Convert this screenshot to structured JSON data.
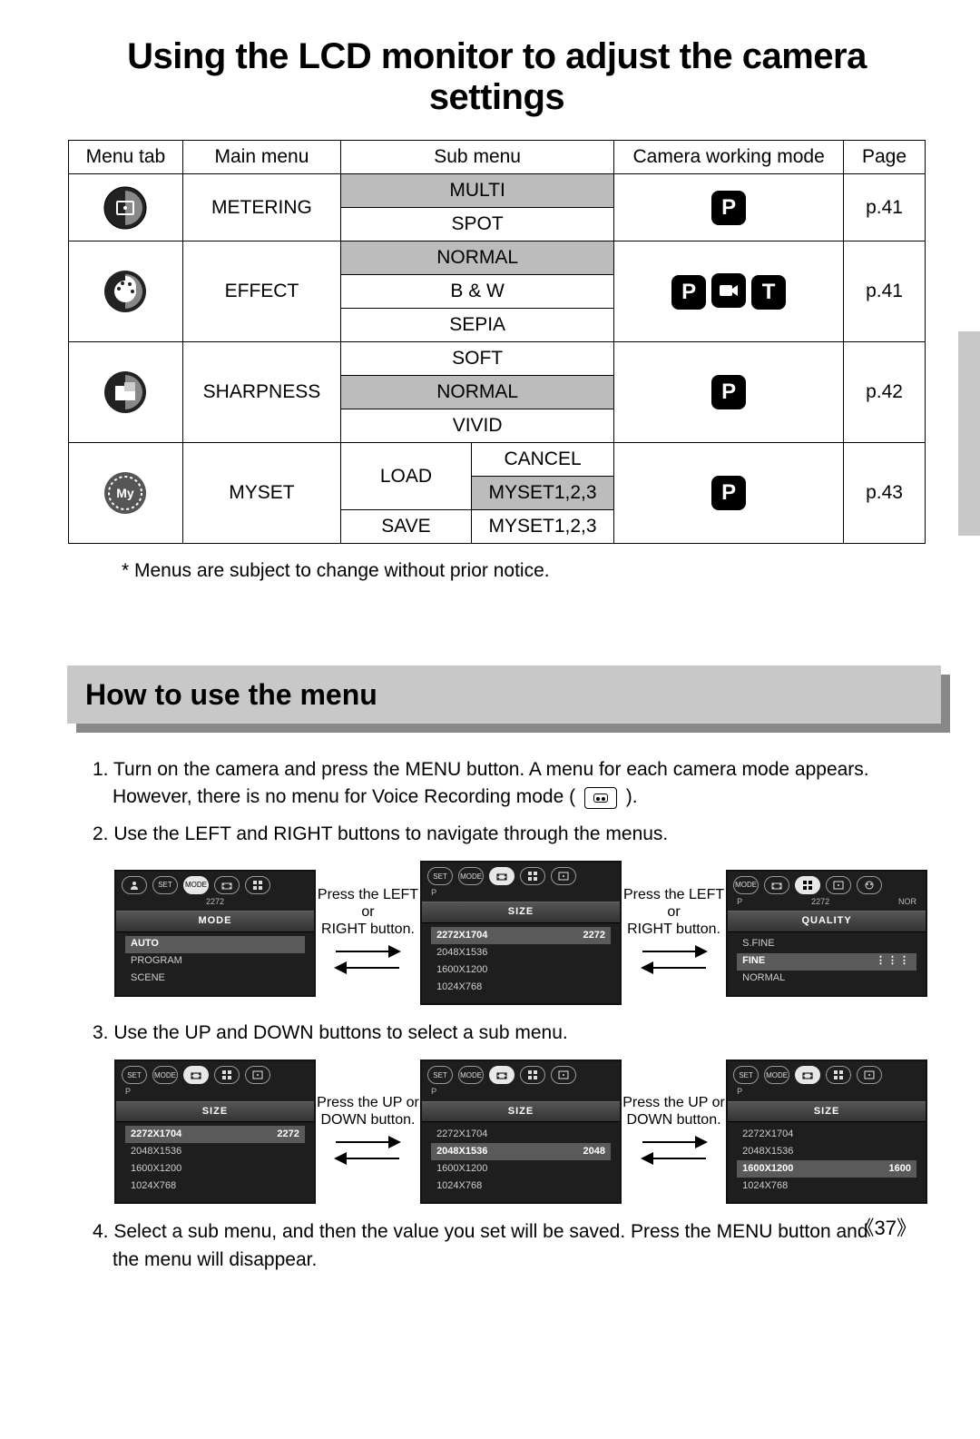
{
  "title": "Using the LCD monitor to adjust the camera settings",
  "table": {
    "headers": {
      "menutab": "Menu tab",
      "mainmenu": "Main menu",
      "submenu": "Sub menu",
      "mode": "Camera working mode",
      "page": "Page"
    },
    "rows": [
      {
        "icon": "metering",
        "main": "METERING",
        "subs": [
          {
            "text": "MULTI",
            "shaded": true
          },
          {
            "text": "SPOT"
          }
        ],
        "modes": [
          "P"
        ],
        "page": "p.41"
      },
      {
        "icon": "effect",
        "main": "EFFECT",
        "subs": [
          {
            "text": "NORMAL",
            "shaded": true
          },
          {
            "text": "B & W"
          },
          {
            "text": "SEPIA"
          }
        ],
        "modes": [
          "P",
          "movie",
          "T"
        ],
        "page": "p.41"
      },
      {
        "icon": "sharpness",
        "main": "SHARPNESS",
        "subs": [
          {
            "text": "SOFT"
          },
          {
            "text": "NORMAL",
            "shaded": true
          },
          {
            "text": "VIVID"
          }
        ],
        "modes": [
          "P"
        ],
        "page": "p.42"
      },
      {
        "icon": "myset",
        "main": "MYSET",
        "subs2": {
          "col1": [
            "LOAD",
            "SAVE"
          ],
          "col2": [
            "CANCEL",
            "MYSET1,2,3",
            "MYSET1,2,3"
          ],
          "shadedCol2": [
            false,
            true,
            false
          ]
        },
        "modes": [
          "P"
        ],
        "page": "p.43"
      }
    ]
  },
  "footnote": "* Menus are subject to change without prior notice.",
  "section": "How to use the menu",
  "steps": {
    "s1a": "1. Turn on the camera and press the MENU button. A menu for each camera mode appears.",
    "s1b": "However, there is no menu for Voice Recording mode (",
    "s1c": ").",
    "s2": "2. Use the LEFT and RIGHT buttons to navigate through the menus.",
    "s3": "3. Use the UP and DOWN buttons to select a sub menu.",
    "s4a": "4. Select a sub menu, and then the value you set will be saved. Press the MENU button and",
    "s4b": "the menu will disappear."
  },
  "arrows": {
    "lr1": "Press the LEFT or",
    "lr2": "RIGHT button.",
    "ud1": "Press the UP or",
    "ud2": "DOWN button."
  },
  "lcd": {
    "row1": [
      {
        "title": "MODE",
        "sub_left": "",
        "sub_mid": "2272",
        "sub_right": "",
        "tabs": [
          "person",
          "SET",
          "MODE",
          "size",
          "grid"
        ],
        "active": 2,
        "items": [
          {
            "label": "AUTO",
            "sel": true
          },
          {
            "label": "PROGRAM"
          },
          {
            "label": "SCENE"
          }
        ]
      },
      {
        "title": "SIZE",
        "sub_left": "P",
        "sub_mid": "",
        "sub_right": "",
        "tabs": [
          "SET",
          "MODE",
          "size",
          "grid",
          "meter"
        ],
        "active": 2,
        "items": [
          {
            "label": "2272X1704",
            "val": "2272",
            "sel": true
          },
          {
            "label": "2048X1536"
          },
          {
            "label": "1600X1200"
          },
          {
            "label": "1024X768"
          }
        ]
      },
      {
        "title": "QUALITY",
        "sub_left": "P",
        "sub_mid": "2272",
        "sub_right": "NOR",
        "tabs": [
          "MODE",
          "size",
          "grid",
          "meter",
          "effect"
        ],
        "active": 2,
        "items": [
          {
            "label": "S.FINE"
          },
          {
            "label": "FINE",
            "dots": true,
            "sel": true
          },
          {
            "label": "NORMAL"
          }
        ]
      }
    ],
    "row2": [
      {
        "title": "SIZE",
        "sub_left": "P",
        "sub_mid": "",
        "sub_right": "",
        "tabs": [
          "SET",
          "MODE",
          "size",
          "grid",
          "meter"
        ],
        "active": 2,
        "items": [
          {
            "label": "2272X1704",
            "val": "2272",
            "sel": true
          },
          {
            "label": "2048X1536"
          },
          {
            "label": "1600X1200"
          },
          {
            "label": "1024X768"
          }
        ]
      },
      {
        "title": "SIZE",
        "sub_left": "P",
        "sub_mid": "",
        "sub_right": "",
        "tabs": [
          "SET",
          "MODE",
          "size",
          "grid",
          "meter"
        ],
        "active": 2,
        "items": [
          {
            "label": "2272X1704"
          },
          {
            "label": "2048X1536",
            "val": "2048",
            "sel": true
          },
          {
            "label": "1600X1200"
          },
          {
            "label": "1024X768"
          }
        ]
      },
      {
        "title": "SIZE",
        "sub_left": "P",
        "sub_mid": "",
        "sub_right": "",
        "tabs": [
          "SET",
          "MODE",
          "size",
          "grid",
          "meter"
        ],
        "active": 2,
        "items": [
          {
            "label": "2272X1704"
          },
          {
            "label": "2048X1536"
          },
          {
            "label": "1600X1200",
            "val": "1600",
            "sel": true
          },
          {
            "label": "1024X768"
          }
        ]
      }
    ]
  },
  "pagenum": "37"
}
